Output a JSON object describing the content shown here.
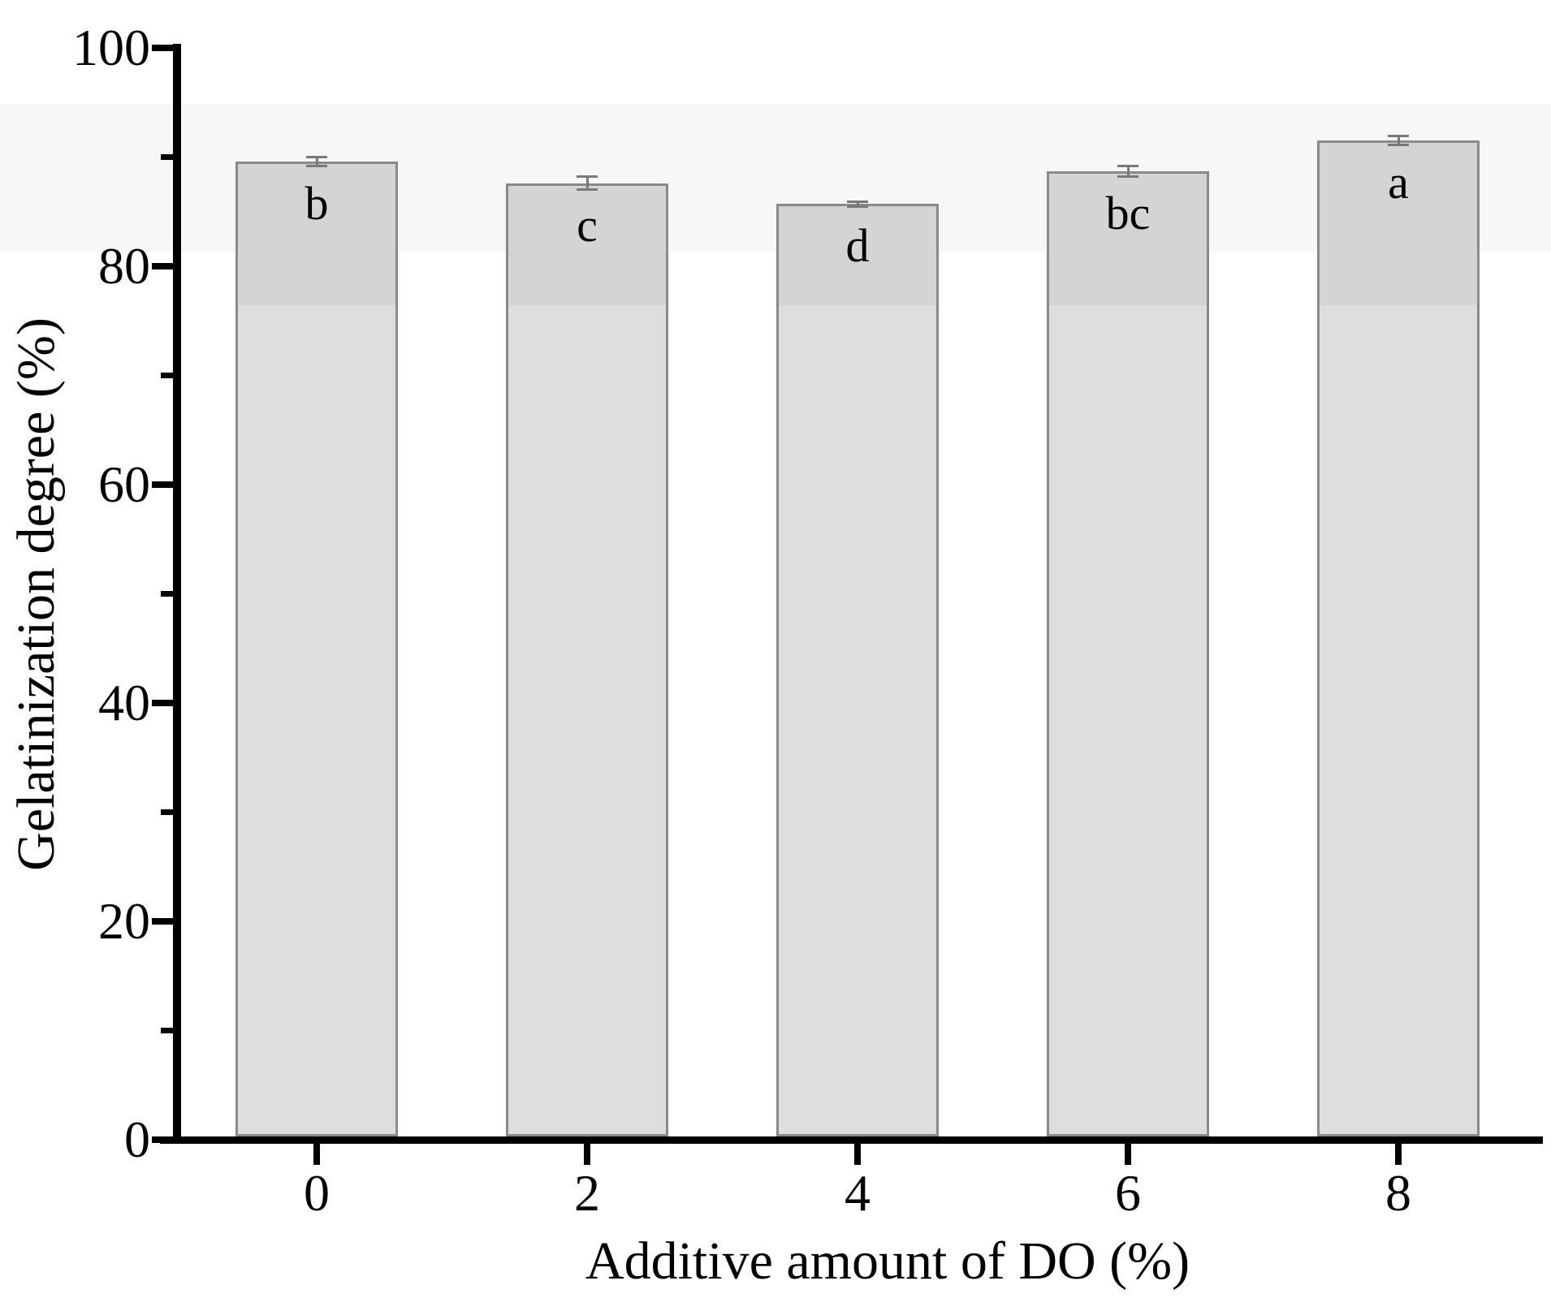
{
  "chart_data": {
    "type": "bar",
    "title": "",
    "xlabel": "Additive amount of DO (%)",
    "ylabel": "Gelatinization degree (%)",
    "categories": [
      "0",
      "2",
      "4",
      "6",
      "8"
    ],
    "series": [
      {
        "name": "Gelatinization degree",
        "values": [
          89.6,
          87.6,
          85.7,
          88.7,
          91.5
        ],
        "errors": [
          0.4,
          0.6,
          0.2,
          0.5,
          0.4
        ],
        "significance_letters": [
          "b",
          "c",
          "d",
          "bc",
          "a"
        ]
      }
    ],
    "ylim": [
      0,
      100
    ],
    "yticks_major": [
      0,
      20,
      40,
      60,
      80,
      100
    ],
    "yticks_minor": [
      10,
      30,
      50,
      70,
      90
    ],
    "grid": "off",
    "legend": "none",
    "colors": {
      "bar_fill_lower": "#dedede",
      "bar_fill_upper": "#d4d4d4",
      "bar_border": "#8a8a8a",
      "error_bar": "#787878",
      "axis": "#000000",
      "text": "#000000",
      "background": "#ffffff",
      "background_band": "#f7f7f7"
    }
  }
}
